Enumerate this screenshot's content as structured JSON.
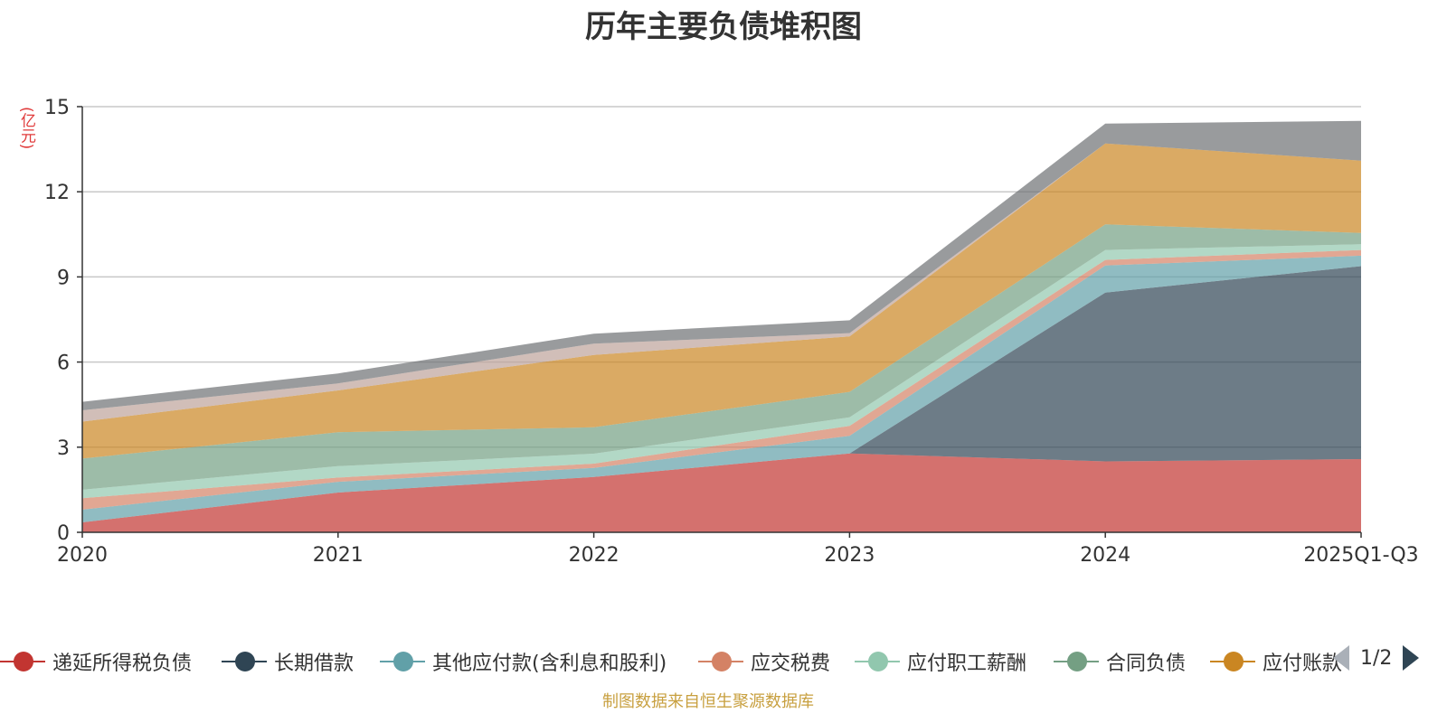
{
  "chart_data": {
    "type": "area",
    "title": "历年主要负债堆积图",
    "ylabel": "亿元",
    "categories": [
      "2020",
      "2021",
      "2022",
      "2023",
      "2024",
      "2025Q1-Q3"
    ],
    "ylim": [
      0,
      15
    ],
    "yticks": [
      "0",
      "3",
      "6",
      "9",
      "12",
      "15"
    ],
    "grid": true,
    "stacked": true,
    "series": [
      {
        "name": "递延所得税负债",
        "color": "#c23531",
        "values": [
          0.35,
          1.4,
          1.95,
          2.78,
          2.5,
          2.58
        ]
      },
      {
        "name": "长期借款",
        "color": "#2f4554",
        "values": [
          0.0,
          0.0,
          0.0,
          0.0,
          5.95,
          6.8
        ]
      },
      {
        "name": "其他应付款(含利息和股利)",
        "color": "#61a0a8",
        "values": [
          0.45,
          0.38,
          0.32,
          0.62,
          0.95,
          0.37
        ]
      },
      {
        "name": "应交税费",
        "color": "#d48265",
        "values": [
          0.4,
          0.15,
          0.15,
          0.35,
          0.2,
          0.2
        ]
      },
      {
        "name": "应付职工薪酬",
        "color": "#91c7ae",
        "values": [
          0.3,
          0.4,
          0.35,
          0.3,
          0.35,
          0.2
        ]
      },
      {
        "name": "合同负债",
        "color": "#749f83",
        "values": [
          1.1,
          1.2,
          0.93,
          0.9,
          0.9,
          0.4
        ]
      },
      {
        "name": "应付账款",
        "color": "#ca8622",
        "values": [
          1.3,
          1.47,
          2.55,
          1.95,
          2.85,
          2.55
        ]
      },
      {
        "name": "",
        "color": "#bda29a",
        "values": [
          0.4,
          0.25,
          0.4,
          0.12,
          0.0,
          0.0
        ]
      },
      {
        "name": "",
        "color": "#6e7074",
        "values": [
          0.3,
          0.35,
          0.35,
          0.45,
          0.7,
          1.4
        ]
      }
    ],
    "legend_position": "bottom",
    "legend_visible": [
      "递延所得税负债",
      "长期借款",
      "其他应付款(含利息和股利)",
      "应交税费",
      "应付职工薪酬",
      "合同负债",
      "应付账款"
    ],
    "legend_page": "1/2"
  },
  "unit_label": "(亿元)",
  "source_note": "制图数据来自恒生聚源数据库"
}
